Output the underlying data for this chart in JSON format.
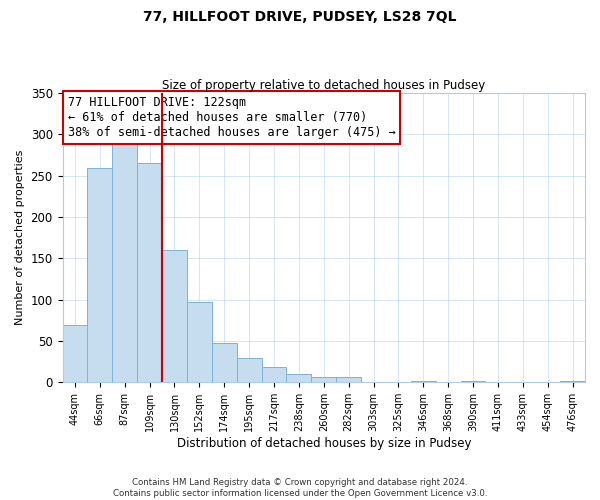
{
  "title": "77, HILLFOOT DRIVE, PUDSEY, LS28 7QL",
  "subtitle": "Size of property relative to detached houses in Pudsey",
  "xlabel": "Distribution of detached houses by size in Pudsey",
  "ylabel": "Number of detached properties",
  "bar_labels": [
    "44sqm",
    "66sqm",
    "87sqm",
    "109sqm",
    "130sqm",
    "152sqm",
    "174sqm",
    "195sqm",
    "217sqm",
    "238sqm",
    "260sqm",
    "282sqm",
    "303sqm",
    "325sqm",
    "346sqm",
    "368sqm",
    "390sqm",
    "411sqm",
    "433sqm",
    "454sqm",
    "476sqm"
  ],
  "bar_values": [
    70,
    260,
    293,
    265,
    160,
    97,
    48,
    29,
    19,
    10,
    6,
    6,
    0,
    0,
    2,
    0,
    2,
    0,
    0,
    0,
    2
  ],
  "bar_color": "#c5ddef",
  "bar_edge_color": "#7bb3d9",
  "vline_x_index": 3,
  "vline_color": "#cc0000",
  "ylim": [
    0,
    350
  ],
  "yticks": [
    0,
    50,
    100,
    150,
    200,
    250,
    300,
    350
  ],
  "annotation_text": "77 HILLFOOT DRIVE: 122sqm\n← 61% of detached houses are smaller (770)\n38% of semi-detached houses are larger (475) →",
  "annotation_box_color": "#ffffff",
  "annotation_box_edge_color": "#cc0000",
  "footer_text": "Contains HM Land Registry data © Crown copyright and database right 2024.\nContains public sector information licensed under the Open Government Licence v3.0.",
  "background_color": "#ffffff",
  "grid_color": "#aaccee"
}
